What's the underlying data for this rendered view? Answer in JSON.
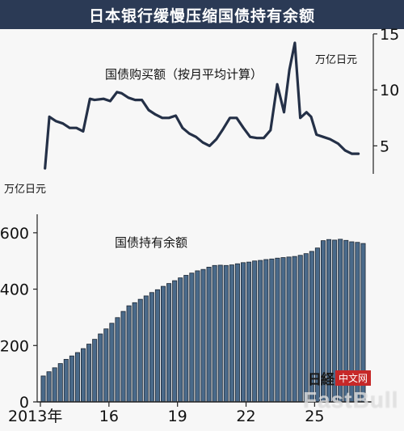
{
  "title": "日本银行缓慢压缩国债持有余额",
  "watermark": {
    "logo": "日経",
    "label": "中文网",
    "brand": "FastBull"
  },
  "colors": {
    "banner": "#2b3a55",
    "bar_fill": "#4a6a8a",
    "bar_stroke": "#1d2733",
    "line": "#243047"
  },
  "chart_data": [
    {
      "type": "line",
      "title": "国债购买额（按月平均计算）",
      "unit": "万亿日元",
      "axis_side": "right",
      "yticks": [
        5,
        10,
        15
      ],
      "ylim": [
        2.5,
        15.5
      ],
      "xlim": [
        2013.0,
        2025.0
      ],
      "x": [
        2013.17,
        2013.33,
        2013.58,
        2013.83,
        2014.08,
        2014.33,
        2014.58,
        2014.83,
        2015.0,
        2015.33,
        2015.58,
        2015.83,
        2016.0,
        2016.25,
        2016.5,
        2016.75,
        2017.0,
        2017.25,
        2017.5,
        2017.75,
        2018.0,
        2018.25,
        2018.5,
        2018.75,
        2019.0,
        2019.25,
        2019.5,
        2019.75,
        2020.0,
        2020.25,
        2020.5,
        2020.75,
        2021.0,
        2021.25,
        2021.5,
        2021.75,
        2022.0,
        2022.2,
        2022.4,
        2022.6,
        2022.83,
        2023.0,
        2023.2,
        2023.45,
        2023.7,
        2024.0,
        2024.25,
        2024.5,
        2024.75
      ],
      "y": [
        3.0,
        7.6,
        7.2,
        7.0,
        6.6,
        6.6,
        6.3,
        9.2,
        9.1,
        9.2,
        9.0,
        9.8,
        9.7,
        9.3,
        9.1,
        9.1,
        8.2,
        7.8,
        7.5,
        7.5,
        7.7,
        6.6,
        6.1,
        5.8,
        5.3,
        5.0,
        5.6,
        6.5,
        7.5,
        7.5,
        6.6,
        5.8,
        5.7,
        5.7,
        6.4,
        10.5,
        8.0,
        11.8,
        14.2,
        7.5,
        8.0,
        7.6,
        6.0,
        5.8,
        5.6,
        5.2,
        4.6,
        4.3,
        4.3
      ]
    },
    {
      "type": "bar",
      "title": "国债持有余额",
      "unit": "万亿日元",
      "axis_side": "left",
      "yticks": [
        0,
        200,
        400,
        600
      ],
      "ylim": [
        0,
        700
      ],
      "xticks": [
        "2013年",
        "16",
        "19",
        "22",
        "25"
      ],
      "xtick_years": [
        2013,
        2016,
        2019,
        2022,
        2025
      ],
      "start_year": 2013,
      "values": [
        92,
        107,
        121,
        136,
        151,
        163,
        175,
        189,
        205,
        222,
        241,
        259,
        279,
        299,
        321,
        341,
        352,
        364,
        376,
        388,
        398,
        410,
        420,
        430,
        440,
        449,
        457,
        465,
        470,
        478,
        484,
        485,
        484,
        486,
        490,
        494,
        496,
        500,
        502,
        505,
        507,
        510,
        512,
        514,
        516,
        520,
        526,
        534,
        546,
        572,
        576,
        574,
        577,
        573,
        568,
        566,
        562
      ]
    }
  ]
}
